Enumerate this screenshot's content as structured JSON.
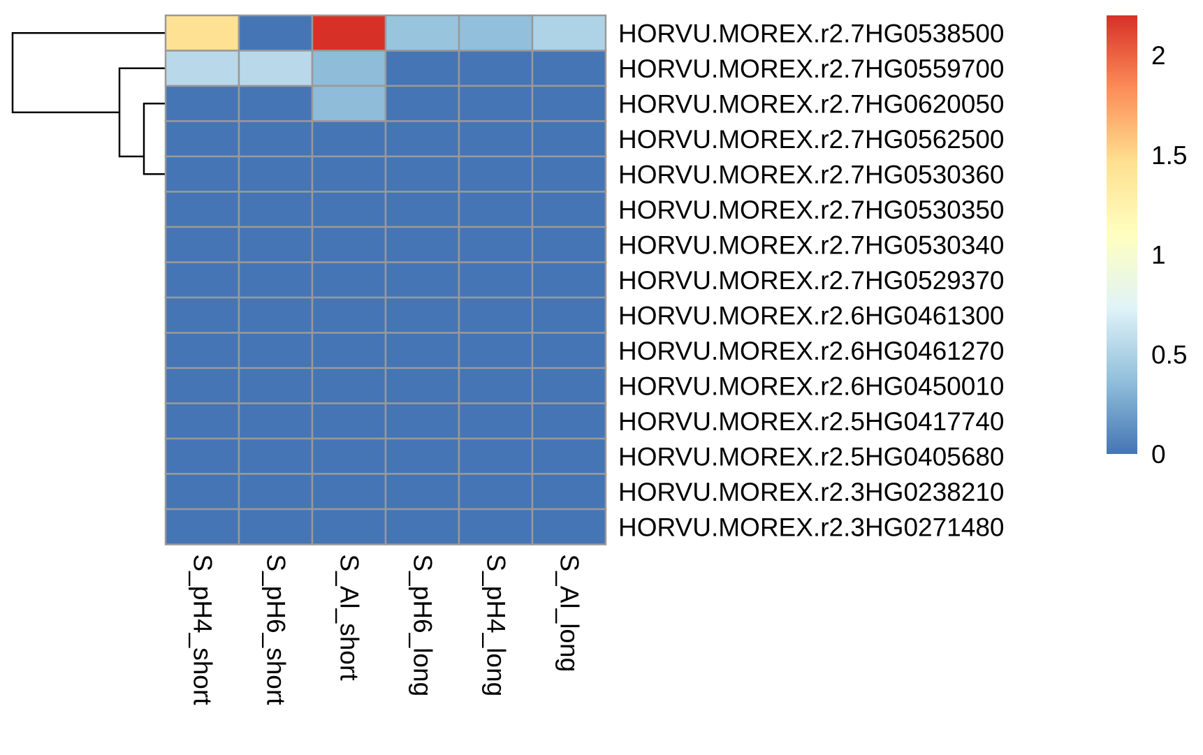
{
  "chart_data": {
    "type": "heatmap",
    "title": "",
    "xlabel": "",
    "ylabel": "",
    "columns": [
      "S_pH4_short",
      "S_pH6_short",
      "S_Al_short",
      "S_pH6_long",
      "S_pH4_long",
      "S_Al_long"
    ],
    "rows": [
      "HORVU.MOREX.r2.7HG0538500",
      "HORVU.MOREX.r2.7HG0559700",
      "HORVU.MOREX.r2.7HG0620050",
      "HORVU.MOREX.r2.7HG0562500",
      "HORVU.MOREX.r2.7HG0530360",
      "HORVU.MOREX.r2.7HG0530350",
      "HORVU.MOREX.r2.7HG0530340",
      "HORVU.MOREX.r2.7HG0529370",
      "HORVU.MOREX.r2.6HG0461300",
      "HORVU.MOREX.r2.6HG0461270",
      "HORVU.MOREX.r2.6HG0450010",
      "HORVU.MOREX.r2.5HG0417740",
      "HORVU.MOREX.r2.5HG0405680",
      "HORVU.MOREX.r2.3HG0238210",
      "HORVU.MOREX.r2.3HG0271480"
    ],
    "values": [
      [
        1.45,
        0.0,
        2.2,
        0.4,
        0.37,
        0.5
      ],
      [
        0.55,
        0.55,
        0.35,
        0.0,
        0.0,
        0.0
      ],
      [
        0.0,
        0.0,
        0.35,
        0.0,
        0.0,
        0.0
      ],
      [
        0.0,
        0.0,
        0.0,
        0.0,
        0.0,
        0.0
      ],
      [
        0.0,
        0.0,
        0.0,
        0.0,
        0.0,
        0.0
      ],
      [
        0.0,
        0.0,
        0.0,
        0.0,
        0.0,
        0.0
      ],
      [
        0.0,
        0.0,
        0.0,
        0.0,
        0.0,
        0.0
      ],
      [
        0.0,
        0.0,
        0.0,
        0.0,
        0.0,
        0.0
      ],
      [
        0.0,
        0.0,
        0.0,
        0.0,
        0.0,
        0.0
      ],
      [
        0.0,
        0.0,
        0.0,
        0.0,
        0.0,
        0.0
      ],
      [
        0.0,
        0.0,
        0.0,
        0.0,
        0.0,
        0.0
      ],
      [
        0.0,
        0.0,
        0.0,
        0.0,
        0.0,
        0.0
      ],
      [
        0.0,
        0.0,
        0.0,
        0.0,
        0.0,
        0.0
      ],
      [
        0.0,
        0.0,
        0.0,
        0.0,
        0.0,
        0.0
      ],
      [
        0.0,
        0.0,
        0.0,
        0.0,
        0.0,
        0.0
      ]
    ],
    "color_scale": {
      "min": 0,
      "max": 2.2,
      "ticks": [
        {
          "value": 0,
          "label": "0"
        },
        {
          "value": 0.5,
          "label": "0.5"
        },
        {
          "value": 1,
          "label": "1"
        },
        {
          "value": 1.5,
          "label": "1.5"
        },
        {
          "value": 2,
          "label": "2"
        }
      ],
      "colors": [
        "#4575B4",
        "#91BFDB",
        "#E0F3F8",
        "#FFFFBF",
        "#FEE090",
        "#FC8D59",
        "#D73027"
      ]
    },
    "cell_border_color": "#999999",
    "row_dendrogram": true,
    "legend_position": "right"
  }
}
